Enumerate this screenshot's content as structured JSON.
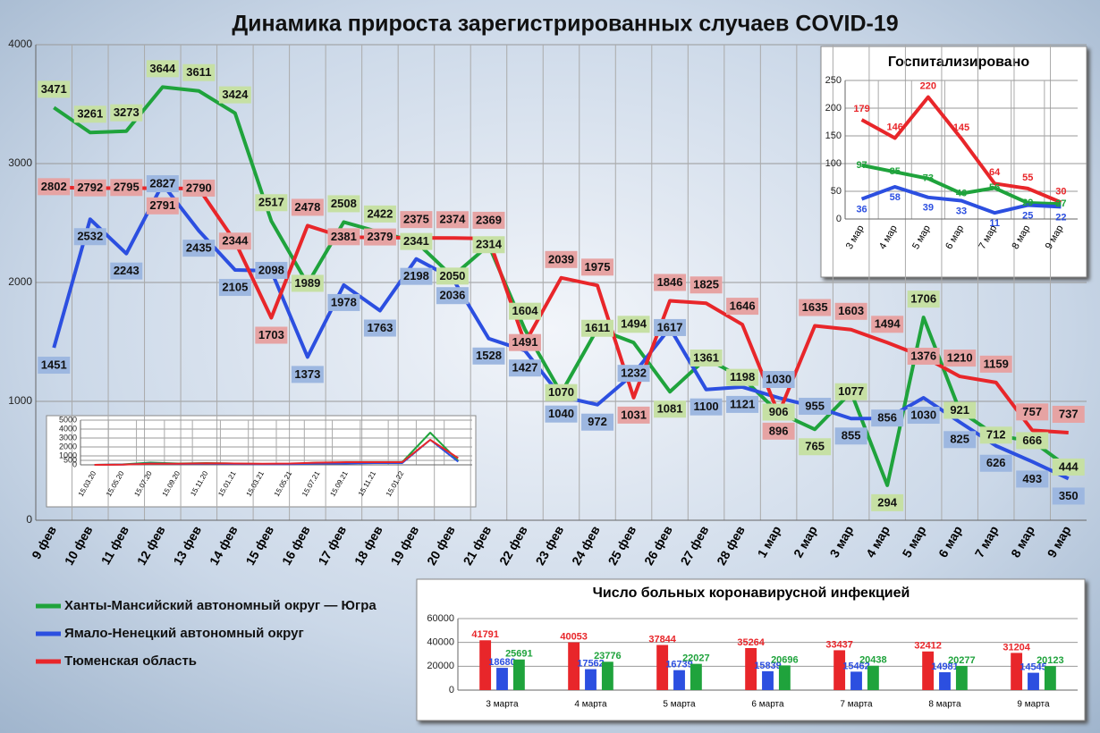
{
  "chart_data": [
    {
      "type": "line",
      "title": "Динамика прироста зарегистрированных случаев COVID-19",
      "categories": [
        "9 фев",
        "10 фев",
        "11 фев",
        "12 фев",
        "13 фев",
        "14 фев",
        "15 фев",
        "16 фев",
        "17 фев",
        "18 фев",
        "19 фев",
        "20 фев",
        "21 фев",
        "22 фев",
        "23 фев",
        "24 фев",
        "25 фев",
        "26 фев",
        "27 фев",
        "28 фев",
        "1 мар",
        "2 мар",
        "3 мар",
        "4 мар",
        "5 мар",
        "6 мар",
        "7 мар",
        "8 мар",
        "9 мар"
      ],
      "series": [
        {
          "name": "Ханты-Мансийский автономный округ — Югра",
          "color": "#1fa33c",
          "label_color": "#c6e0a4",
          "values": [
            3471,
            3261,
            3273,
            3644,
            3611,
            3424,
            2517,
            1989,
            2508,
            2422,
            2341,
            2050,
            2314,
            1604,
            1070,
            1611,
            1494,
            1081,
            1361,
            1198,
            906,
            765,
            1077,
            294,
            1706,
            921,
            712,
            666,
            444
          ]
        },
        {
          "name": "Ямало-Ненецкий автономный округ",
          "color": "#2c4fe0",
          "label_color": "#9db7e0",
          "values": [
            1451,
            2532,
            2243,
            2827,
            2435,
            2105,
            2098,
            1373,
            1978,
            1763,
            2198,
            2036,
            1528,
            1427,
            1040,
            972,
            1232,
            1617,
            1100,
            1121,
            1030,
            955,
            855,
            856,
            1030,
            825,
            626,
            493,
            350
          ]
        },
        {
          "name": "Тюменская область",
          "color": "#e8262a",
          "label_color": "#e6a3a3",
          "values": [
            2802,
            2792,
            2795,
            2791,
            2790,
            2344,
            1703,
            2478,
            2381,
            2379,
            2375,
            2374,
            2369,
            1491,
            2039,
            1975,
            1031,
            1846,
            1825,
            1646,
            896,
            1635,
            1603,
            1494,
            1376,
            1210,
            1159,
            757,
            737
          ]
        }
      ],
      "ylim": [
        0,
        4000
      ],
      "yticks": [
        0,
        1000,
        2000,
        3000,
        4000
      ],
      "grid": true,
      "legend": "bottom-left"
    },
    {
      "type": "line",
      "title": "Госпитализировано",
      "categories": [
        "3 мар",
        "4 мар",
        "5 мар",
        "6 мар",
        "7 мар",
        "8 мар",
        "9 мар"
      ],
      "series": [
        {
          "color": "#e8262a",
          "values": [
            179,
            146,
            220,
            145,
            64,
            55,
            30
          ]
        },
        {
          "color": "#1fa33c",
          "values": [
            97,
            85,
            73,
            46,
            56,
            29,
            27
          ]
        },
        {
          "color": "#2c4fe0",
          "values": [
            36,
            58,
            39,
            33,
            11,
            25,
            22
          ]
        }
      ],
      "ylim": [
        0,
        250
      ],
      "yticks": [
        0,
        50,
        100,
        150,
        200,
        250
      ],
      "grid": true
    },
    {
      "type": "bar",
      "title": "Число больных коронавирусной инфекцией",
      "categories": [
        "3 марта",
        "4 марта",
        "5 марта",
        "6 марта",
        "7 марта",
        "8 марта",
        "9 марта"
      ],
      "series": [
        {
          "color": "#e8262a",
          "values": [
            41791,
            40053,
            37844,
            35264,
            33437,
            32412,
            31204
          ]
        },
        {
          "color": "#2c4fe0",
          "values": [
            18680,
            17562,
            16739,
            15839,
            15462,
            14981,
            14545
          ]
        },
        {
          "color": "#1fa33c",
          "values": [
            25691,
            23776,
            22027,
            20696,
            20438,
            20277,
            20123
          ]
        }
      ],
      "ylim": [
        0,
        60000
      ],
      "yticks": [
        0,
        20000,
        40000,
        60000
      ],
      "grid": true
    },
    {
      "type": "line",
      "categories": [
        "15.03.20",
        "15.05.20",
        "15.07.20",
        "15.09.20",
        "15.11.20",
        "15.01.21",
        "15.03.21",
        "15.05.21",
        "15.07.21",
        "15.09.21",
        "15.11.21",
        "15.01.22",
        null,
        null
      ],
      "series": [
        {
          "color": "#1fa33c",
          "values": [
            0,
            50,
            250,
            150,
            200,
            150,
            100,
            100,
            250,
            250,
            300,
            300,
            3600,
            450
          ]
        },
        {
          "color": "#2c4fe0",
          "values": [
            0,
            30,
            150,
            100,
            120,
            100,
            80,
            80,
            150,
            150,
            200,
            200,
            2800,
            350
          ]
        },
        {
          "color": "#e8262a",
          "values": [
            0,
            20,
            120,
            120,
            180,
            150,
            130,
            150,
            250,
            300,
            300,
            300,
            2800,
            750
          ]
        }
      ],
      "ylim": [
        0,
        5000
      ],
      "yticks": [
        0,
        500,
        1000,
        2000,
        3000,
        4000,
        5000
      ],
      "grid": true
    }
  ]
}
